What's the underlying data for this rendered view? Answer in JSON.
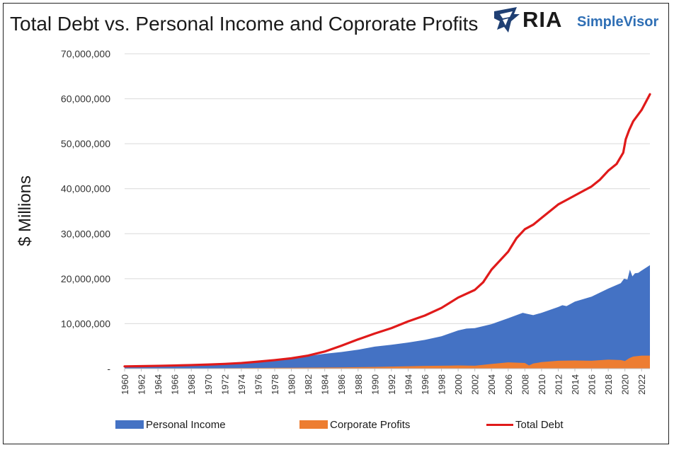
{
  "chart_data": {
    "type": "area",
    "title": "Total Debt vs. Personal Income and Coprorate Profits",
    "ylabel": "$ Millions",
    "xlabel": "",
    "ylim": [
      0,
      70000000
    ],
    "xlim": [
      1960,
      2023
    ],
    "grid": true,
    "legend_position": "bottom",
    "yticks": [
      "-",
      "10,000,000",
      "20,000,000",
      "30,000,000",
      "40,000,000",
      "50,000,000",
      "60,000,000",
      "70,000,000"
    ],
    "ytick_values": [
      0,
      10000000,
      20000000,
      30000000,
      40000000,
      50000000,
      60000000,
      70000000
    ],
    "xticks": [
      "1960",
      "1962",
      "1964",
      "1966",
      "1968",
      "1970",
      "1972",
      "1974",
      "1976",
      "1978",
      "1980",
      "1982",
      "1984",
      "1986",
      "1988",
      "1990",
      "1992",
      "1994",
      "1996",
      "1998",
      "2000",
      "2002",
      "2004",
      "2006",
      "2008",
      "2010",
      "2012",
      "2014",
      "2016",
      "2018",
      "2020",
      "2022"
    ],
    "series": [
      {
        "name": "Personal Income",
        "kind": "area",
        "color": "#4472c4",
        "x": [
          1960,
          1962,
          1964,
          1966,
          1968,
          1970,
          1972,
          1974,
          1976,
          1978,
          1980,
          1982,
          1984,
          1986,
          1988,
          1990,
          1992,
          1994,
          1996,
          1998,
          2000,
          2001,
          2002,
          2004,
          2006,
          2007.75,
          2008.25,
          2009,
          2010,
          2012,
          2012.5,
          2013,
          2014,
          2016,
          2018,
          2019.5,
          2019.9,
          2020.3,
          2020.6,
          2020.9,
          2021.2,
          2021.6,
          2022,
          2023
        ],
        "values": [
          400000,
          450000,
          520000,
          600000,
          700000,
          850000,
          1000000,
          1250000,
          1500000,
          1800000,
          2200000,
          2800000,
          3300000,
          3700000,
          4200000,
          4900000,
          5300000,
          5800000,
          6400000,
          7200000,
          8500000,
          8900000,
          9000000,
          9900000,
          11200000,
          12400000,
          12200000,
          11900000,
          12400000,
          13700000,
          14100000,
          13900000,
          14900000,
          16000000,
          17800000,
          19000000,
          20000000,
          19800000,
          22000000,
          20500000,
          21200000,
          21300000,
          21800000,
          23000000
        ]
      },
      {
        "name": "Corporate Profits",
        "kind": "area",
        "color": "#ed7d31",
        "x": [
          1960,
          1966,
          1970,
          1976,
          1980,
          1986,
          1990,
          1996,
          2000,
          2002,
          2004,
          2006,
          2008,
          2008.5,
          2009,
          2010,
          2012,
          2014,
          2016,
          2018,
          2019.5,
          2020,
          2020.5,
          2021,
          2022,
          2023
        ],
        "values": [
          50000,
          80000,
          80000,
          150000,
          200000,
          270000,
          380000,
          600000,
          700000,
          650000,
          1050000,
          1400000,
          1250000,
          700000,
          1150000,
          1450000,
          1750000,
          1800000,
          1750000,
          2000000,
          1900000,
          1700000,
          2300000,
          2700000,
          2900000,
          2900000
        ]
      },
      {
        "name": "Total Debt",
        "kind": "line",
        "color": "#e01a1a",
        "x": [
          1960,
          1962,
          1964,
          1966,
          1968,
          1970,
          1972,
          1974,
          1976,
          1978,
          1980,
          1982,
          1984,
          1986,
          1988,
          1990,
          1992,
          1994,
          1996,
          1998,
          2000,
          2002,
          2003,
          2004,
          2006,
          2007,
          2008,
          2009,
          2010,
          2011,
          2012,
          2013,
          2014,
          2015,
          2016,
          2017,
          2018,
          2019,
          2019.8,
          2020.1,
          2020.5,
          2021,
          2022,
          2023
        ],
        "values": [
          500000,
          550000,
          620000,
          700000,
          800000,
          900000,
          1050000,
          1250000,
          1550000,
          1900000,
          2300000,
          2900000,
          3800000,
          5100000,
          6500000,
          7800000,
          9000000,
          10500000,
          11800000,
          13500000,
          15800000,
          17500000,
          19200000,
          22000000,
          26000000,
          29000000,
          31000000,
          32000000,
          33500000,
          35000000,
          36500000,
          37500000,
          38500000,
          39500000,
          40500000,
          42000000,
          44000000,
          45500000,
          48000000,
          51000000,
          53000000,
          55000000,
          57500000,
          61000000
        ]
      }
    ]
  },
  "legend": {
    "personal_income": "Personal Income",
    "corporate_profits": "Corporate Profits",
    "total_debt": "Total Debt"
  },
  "brand": {
    "ria": "RIA",
    "simplevisor": "SimpleVisor"
  },
  "colors": {
    "personal_income": "#4472c4",
    "corporate_profits": "#ed7d31",
    "total_debt": "#e01a1a",
    "grid": "#d9d9d9",
    "brand_blue": "#2f6fb5",
    "logo_navy": "#1f3f73"
  }
}
